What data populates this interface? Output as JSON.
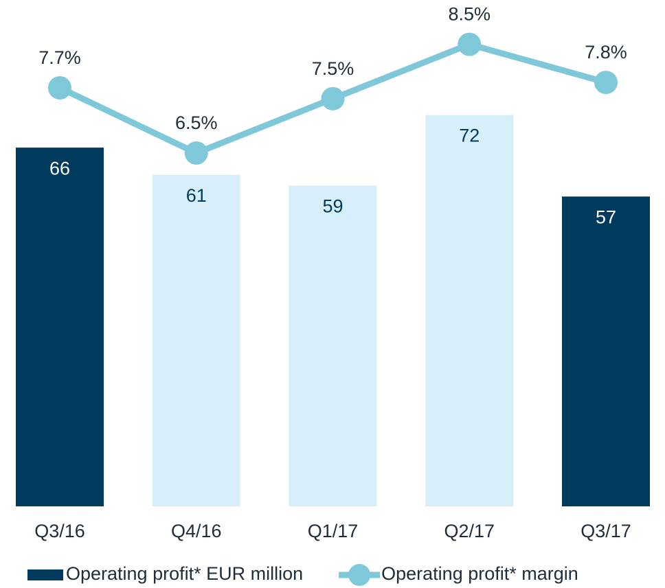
{
  "chart_data": {
    "type": "bar_line",
    "categories": [
      "Q3/16",
      "Q4/16",
      "Q1/17",
      "Q2/17",
      "Q3/17"
    ],
    "series": [
      {
        "name": "Operating profit* EUR million",
        "type": "bar",
        "color": "#003a5c",
        "colors": [
          "#003a5c",
          "#d6effb",
          "#d6effb",
          "#d6effb",
          "#003a5c"
        ],
        "values": [
          66,
          61,
          59,
          72,
          57
        ]
      },
      {
        "name": "Operating profit* margin",
        "type": "line",
        "axis": "y2",
        "color": "#7ec8d9",
        "values": [
          7.7,
          6.5,
          7.5,
          8.5,
          7.8
        ],
        "value_labels": [
          "7.7%",
          "6.5%",
          "7.5%",
          "8.5%",
          "7.8%"
        ]
      }
    ],
    "ylim": [
      0,
      90
    ],
    "y2lim": [
      0,
      9
    ],
    "legend": "bottom"
  }
}
